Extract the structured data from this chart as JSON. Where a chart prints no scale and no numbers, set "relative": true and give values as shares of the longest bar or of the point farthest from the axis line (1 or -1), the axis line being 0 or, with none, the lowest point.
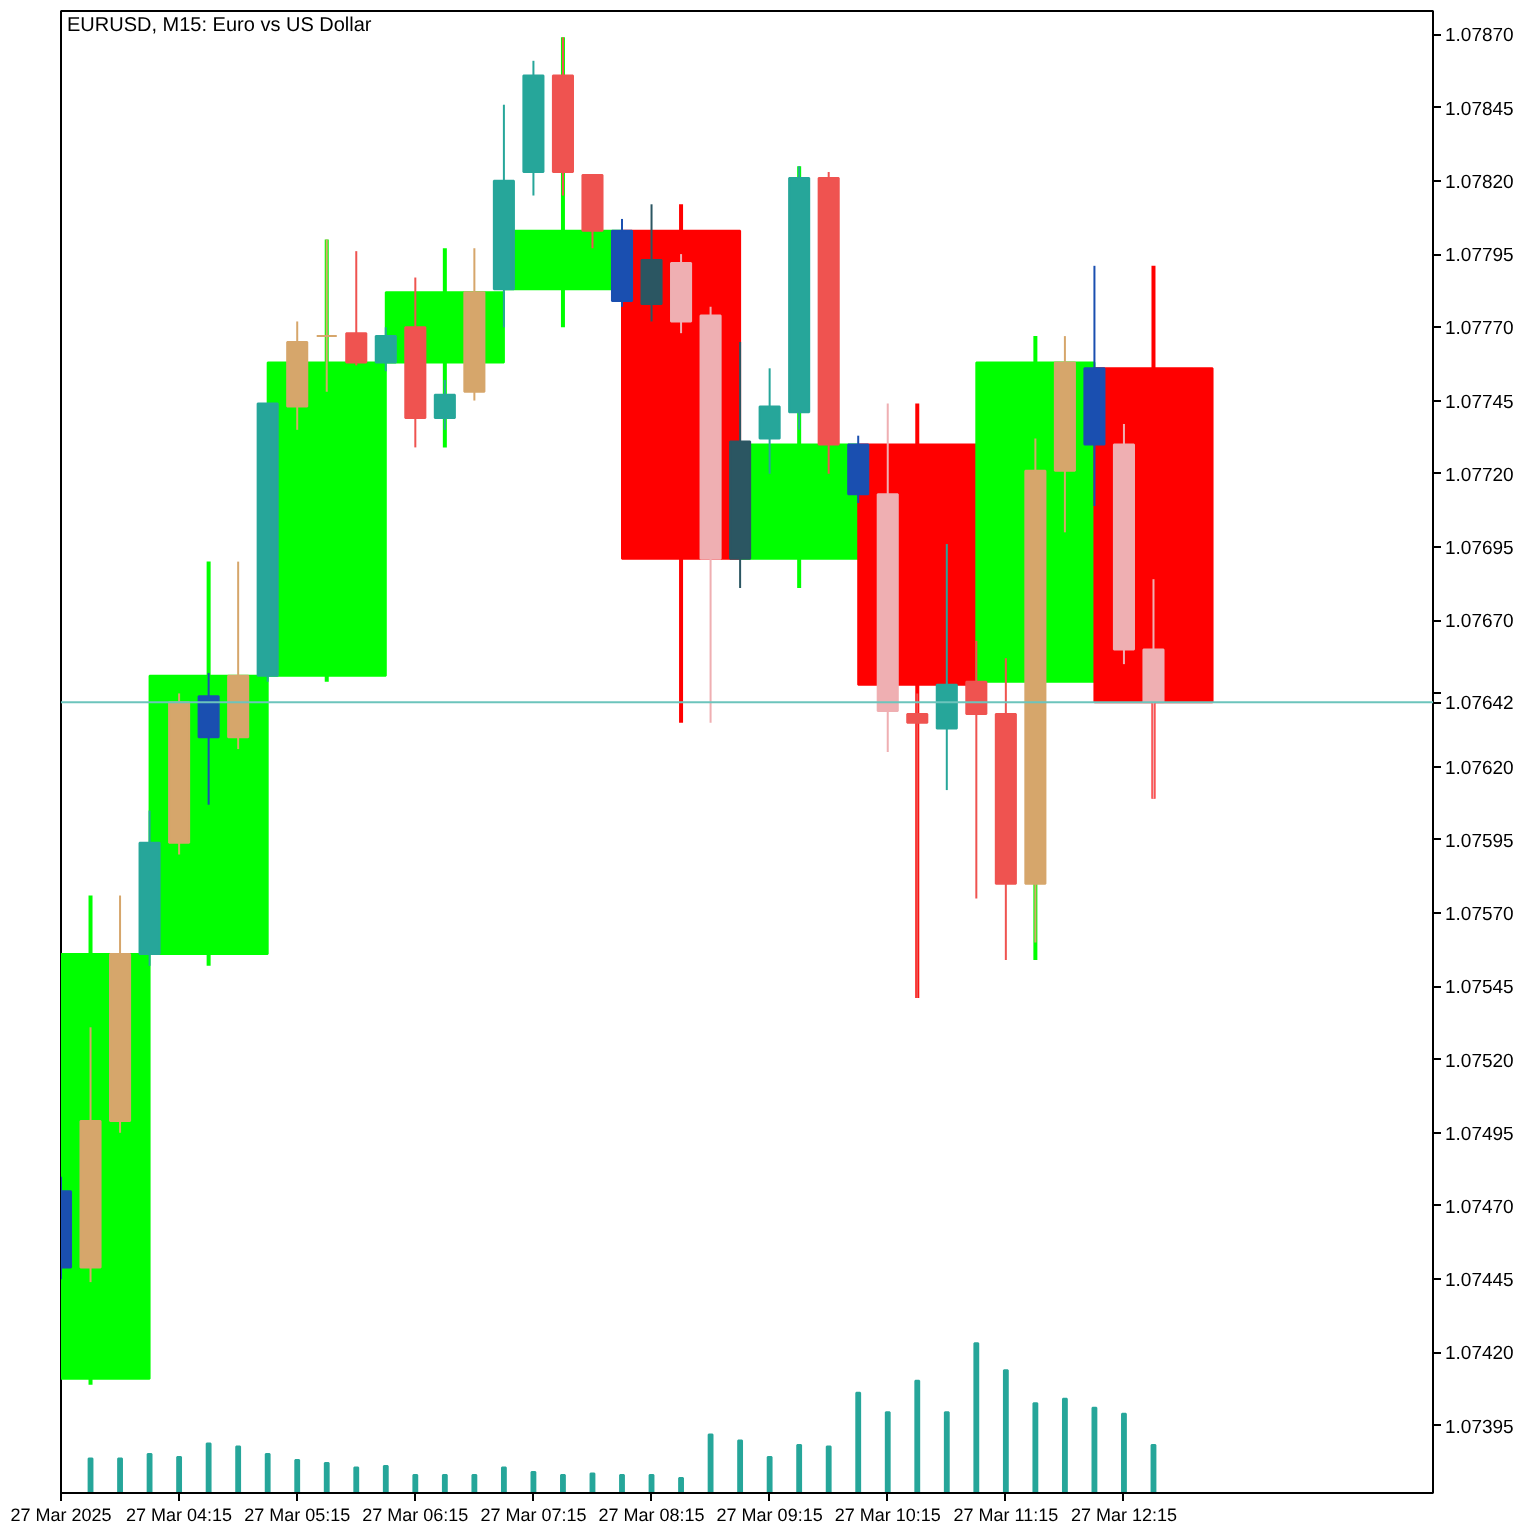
{
  "chart_data": [
    {
      "type": "candlestick",
      "title": "EURUSD, M15: Euro vs US Dollar",
      "xlim": [
        "2025-03-27T03:15",
        "2025-03-27T14:52"
      ],
      "ylim": [
        1.07372,
        1.07878
      ],
      "xticks": [
        {
          "value": "2025-03-27T03:15",
          "label": "27 Mar 2025"
        },
        {
          "value": "2025-03-27T04:15",
          "label": "27 Mar 04:15"
        },
        {
          "value": "2025-03-27T05:15",
          "label": "27 Mar 05:15"
        },
        {
          "value": "2025-03-27T06:15",
          "label": "27 Mar 06:15"
        },
        {
          "value": "2025-03-27T07:15",
          "label": "27 Mar 07:15"
        },
        {
          "value": "2025-03-27T08:15",
          "label": "27 Mar 08:15"
        },
        {
          "value": "2025-03-27T09:15",
          "label": "27 Mar 09:15"
        },
        {
          "value": "2025-03-27T10:15",
          "label": "27 Mar 10:15"
        },
        {
          "value": "2025-03-27T11:15",
          "label": "27 Mar 11:15"
        },
        {
          "value": "2025-03-27T12:15",
          "label": "27 Mar 12:15"
        }
      ],
      "yticks": [
        1.07395,
        {
          "value": 1.0742,
          "label": "1.07420"
        },
        1.07445,
        {
          "value": 1.0747,
          "label": "1.07470"
        },
        1.07495,
        {
          "value": 1.0752,
          "label": "1.07520"
        },
        1.07545,
        {
          "value": 1.0757,
          "label": "1.07570"
        },
        1.07595,
        {
          "value": 1.0762,
          "label": "1.07620"
        },
        {
          "value": 1.07645,
          "label": null
        },
        {
          "value": 1.0767,
          "label": "1.07670"
        },
        1.07695,
        {
          "value": 1.0772,
          "label": "1.07720"
        },
        1.07745,
        {
          "value": 1.0777,
          "label": "1.07770"
        },
        1.07795,
        {
          "value": 1.0782,
          "label": "1.07820"
        },
        1.07845,
        {
          "value": 1.0787,
          "label": "1.07870"
        }
      ],
      "series": [
        {
          "x": [
            "2025-03-27T03:30",
            "2025-03-27T04:30",
            "2025-03-27T05:30",
            "2025-03-27T06:30",
            "2025-03-27T07:30",
            "2025-03-27T08:30",
            "2025-03-27T09:30",
            "2025-03-27T10:30",
            "2025-03-27T11:30",
            "2025-03-27T12:30"
          ],
          "ohlc": [
            [
              1.07411,
              1.07576,
              1.07409,
              1.07556
            ],
            [
              1.07556,
              1.0769,
              1.07552,
              1.07651
            ],
            [
              1.07651,
              1.078,
              1.07649,
              1.07758
            ],
            [
              1.07758,
              1.07797,
              1.07729,
              1.07782
            ],
            [
              1.07783,
              1.07869,
              1.0777,
              1.07803
            ],
            [
              1.07803,
              1.07812,
              1.07635,
              1.07691
            ],
            [
              1.07691,
              1.07825,
              1.07681,
              1.0773
            ],
            [
              1.0773,
              1.07744,
              1.07541,
              1.07648
            ],
            [
              1.07649,
              1.07767,
              1.07554,
              1.07758
            ],
            [
              1.07756,
              1.07791,
              1.07609,
              1.07642
            ]
          ],
          "colors": [
            "#00ff00",
            "#00ff00",
            "#00ff00",
            "#00ff00",
            "#00ff00",
            "#ff0000",
            "#00ff00",
            "#ff0000",
            "#00ff00",
            "#ff0000"
          ]
        },
        {
          "x": [
            "2025-03-27T03:15",
            "2025-03-27T03:30",
            "2025-03-27T03:45",
            "2025-03-27T04:00",
            "2025-03-27T04:15",
            "2025-03-27T04:30",
            "2025-03-27T04:45",
            "2025-03-27T05:00",
            "2025-03-27T05:15",
            "2025-03-27T05:30",
            "2025-03-27T05:45",
            "2025-03-27T06:00",
            "2025-03-27T06:15",
            "2025-03-27T06:30",
            "2025-03-27T06:45",
            "2025-03-27T07:00",
            "2025-03-27T07:15",
            "2025-03-27T07:30",
            "2025-03-27T07:45",
            "2025-03-27T08:00",
            "2025-03-27T08:15",
            "2025-03-27T08:30",
            "2025-03-27T08:45",
            "2025-03-27T09:00",
            "2025-03-27T09:15",
            "2025-03-27T09:30",
            "2025-03-27T09:45",
            "2025-03-27T10:00",
            "2025-03-27T10:15",
            "2025-03-27T10:30",
            "2025-03-27T10:45",
            "2025-03-27T11:00",
            "2025-03-27T11:15",
            "2025-03-27T11:30",
            "2025-03-27T11:45",
            "2025-03-27T12:00",
            "2025-03-27T12:15",
            "2025-03-27T12:30"
          ],
          "ohlc": [
            [
              1.07475,
              1.0748,
              1.07445,
              1.07449
            ],
            [
              1.07449,
              1.07531,
              1.07444,
              1.07499
            ],
            [
              1.07499,
              1.07576,
              1.07495,
              1.07556
            ],
            [
              1.07556,
              1.07605,
              1.07552,
              1.07594
            ],
            [
              1.07594,
              1.07645,
              1.0759,
              1.07642
            ],
            [
              1.07644,
              1.07652,
              1.07607,
              1.0763
            ],
            [
              1.0763,
              1.0769,
              1.07626,
              1.07651
            ],
            [
              1.07651,
              1.07744,
              1.07649,
              1.07744
            ],
            [
              1.07743,
              1.07772,
              1.07735,
              1.07765
            ],
            [
              1.07767,
              1.078,
              1.07748,
              1.07767
            ],
            [
              1.07768,
              1.07796,
              1.07757,
              1.07758
            ],
            [
              1.07758,
              1.0777,
              1.07755,
              1.07767
            ],
            [
              1.0777,
              1.07787,
              1.07729,
              1.07739
            ],
            [
              1.07739,
              1.07752,
              1.07735,
              1.07747
            ],
            [
              1.07748,
              1.07797,
              1.07745,
              1.07782
            ],
            [
              1.07783,
              1.07846,
              1.0777,
              1.0782
            ],
            [
              1.07823,
              1.07861,
              1.07815,
              1.07856
            ],
            [
              1.07856,
              1.07869,
              1.07815,
              1.07823
            ],
            [
              1.07822,
              1.07822,
              1.07797,
              1.07803
            ],
            [
              1.07803,
              1.07807,
              1.07777,
              1.07779
            ],
            [
              1.07778,
              1.07812,
              1.07772,
              1.07793
            ],
            [
              1.07792,
              1.07795,
              1.07768,
              1.07772
            ],
            [
              1.07774,
              1.07777,
              1.07635,
              1.07691
            ],
            [
              1.07691,
              1.07765,
              1.07681,
              1.07731
            ],
            [
              1.07732,
              1.07756,
              1.0772,
              1.07743
            ],
            [
              1.07741,
              1.07825,
              1.07735,
              1.07821
            ],
            [
              1.07821,
              1.07823,
              1.0772,
              1.0773
            ],
            [
              1.0773,
              1.07733,
              1.0771,
              1.07713
            ],
            [
              1.07713,
              1.07744,
              1.07625,
              1.07639
            ],
            [
              1.07638,
              1.07645,
              1.07541,
              1.07635
            ],
            [
              1.07633,
              1.07696,
              1.07612,
              1.07648
            ],
            [
              1.07649,
              1.07663,
              1.07575,
              1.07638
            ],
            [
              1.07638,
              1.07657,
              1.07554,
              1.0758
            ],
            [
              1.0758,
              1.07732,
              1.0756,
              1.07721
            ],
            [
              1.07721,
              1.07767,
              1.077,
              1.07758
            ],
            [
              1.07756,
              1.07791,
              1.07709,
              1.0773
            ],
            [
              1.0773,
              1.07737,
              1.07655,
              1.0766
            ],
            [
              1.0766,
              1.07684,
              1.07609,
              1.07642
            ]
          ],
          "colors": [
            "#1a4fb0",
            "#d6a66b",
            "#d6a66b",
            "#26a69a",
            "#d6a66b",
            "#1a4fb0",
            "#d6a66b",
            "#26a69a",
            "#d6a66b",
            "#d6a66b",
            "#ef5350",
            "#26a69a",
            "#ef5350",
            "#26a69a",
            "#d6a66b",
            "#26a69a",
            "#26a69a",
            "#ef5350",
            "#ef5350",
            "#1a4fb0",
            "#2b5662",
            "#efafb2",
            "#efafb2",
            "#2b5662",
            "#26a69a",
            "#26a69a",
            "#ef5350",
            "#1a4fb0",
            "#efafb2",
            "#ef5350",
            "#26a69a",
            "#ef5350",
            "#ef5350",
            "#d6a66b",
            "#d6a66b",
            "#1a4fb0",
            "#efafb2",
            "#efafb2"
          ]
        }
      ],
      "ref_lines": [
        {
          "axis": "y",
          "value": 1.07642,
          "label": "1.07642",
          "color": "#6cc4bc"
        }
      ]
    },
    {
      "type": "bar",
      "relative": true,
      "tick_labels": false,
      "xlim": [
        "2025-03-27T03:15",
        "2025-03-27T14:52"
      ],
      "color": "#26a69a",
      "x": [
        "2025-03-27T03:30",
        "2025-03-27T03:45",
        "2025-03-27T04:00",
        "2025-03-27T04:15",
        "2025-03-27T04:30",
        "2025-03-27T04:45",
        "2025-03-27T05:00",
        "2025-03-27T05:15",
        "2025-03-27T05:30",
        "2025-03-27T05:45",
        "2025-03-27T06:00",
        "2025-03-27T06:15",
        "2025-03-27T06:30",
        "2025-03-27T06:45",
        "2025-03-27T07:00",
        "2025-03-27T07:15",
        "2025-03-27T07:30",
        "2025-03-27T07:45",
        "2025-03-27T08:00",
        "2025-03-27T08:15",
        "2025-03-27T08:30",
        "2025-03-27T08:45",
        "2025-03-27T09:00",
        "2025-03-27T09:15",
        "2025-03-27T09:30",
        "2025-03-27T09:45",
        "2025-03-27T10:00",
        "2025-03-27T10:15",
        "2025-03-27T10:30",
        "2025-03-27T10:45",
        "2025-03-27T11:00",
        "2025-03-27T11:15",
        "2025-03-27T11:30",
        "2025-03-27T11:45",
        "2025-03-27T12:00",
        "2025-03-27T12:15",
        "2025-03-27T12:30"
      ],
      "values": [
        0.23,
        0.23,
        0.26,
        0.24,
        0.33,
        0.31,
        0.26,
        0.22,
        0.2,
        0.17,
        0.18,
        0.12,
        0.12,
        0.12,
        0.17,
        0.14,
        0.12,
        0.13,
        0.12,
        0.12,
        0.1,
        0.39,
        0.35,
        0.24,
        0.32,
        0.31,
        0.67,
        0.54,
        0.75,
        0.54,
        1,
        0.82,
        0.6,
        0.63,
        0.57,
        0.53,
        0.32
      ]
    }
  ]
}
